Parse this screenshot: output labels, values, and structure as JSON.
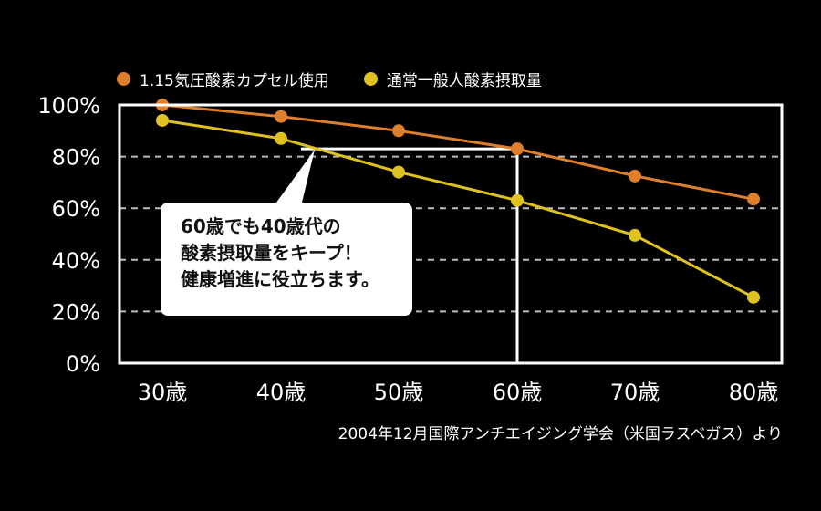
{
  "legend": [
    {
      "label": "1.15気圧酸素カプセル使用",
      "color": "#e07f2b"
    },
    {
      "label": "通常一般人酸素摂取量",
      "color": "#dfc21f"
    }
  ],
  "callout": {
    "lines": [
      "60歳でも40歳代の",
      "酸素摂取量をキープ！",
      "健康増進に役立ちます。"
    ]
  },
  "source": "2004年12月国際アンチエイジング学会（米国ラスベガス）より",
  "chart_data": {
    "type": "line",
    "categories": [
      "30歳",
      "40歳",
      "50歳",
      "60歳",
      "70歳",
      "80歳"
    ],
    "series": [
      {
        "name": "1.15気圧酸素カプセル使用",
        "color": "#e07f2b",
        "values": [
          100,
          95.5,
          90,
          83,
          72.5,
          63.5
        ]
      },
      {
        "name": "通常一般人酸素摂取量",
        "color": "#dfc21f",
        "values": [
          94,
          87,
          74,
          63,
          49.5,
          25.5
        ]
      }
    ],
    "yticks": [
      "0%",
      "20%",
      "40%",
      "60%",
      "80%",
      "100%"
    ],
    "ylim": [
      0,
      100
    ],
    "grid": "dashed",
    "highlight_y": 83,
    "highlight_category": "60歳"
  }
}
